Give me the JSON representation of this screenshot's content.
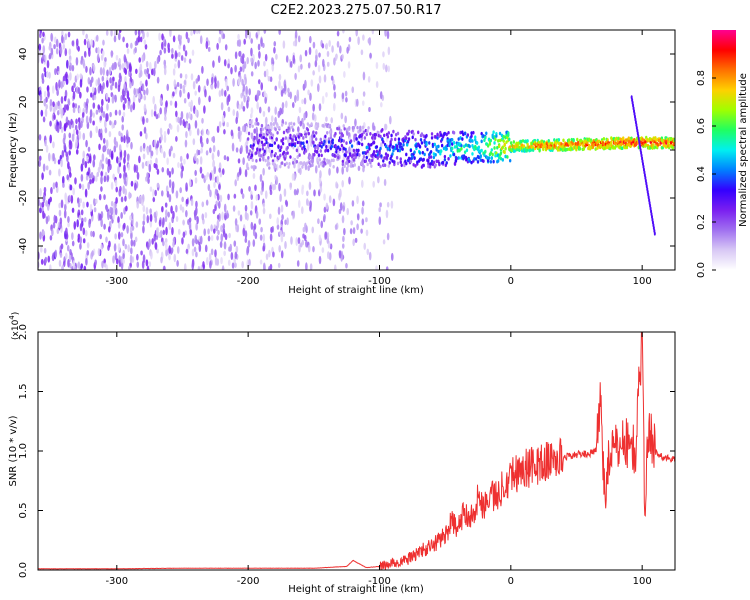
{
  "title": "C2E2.2023.275.07.50.R17",
  "colors": {
    "snr_line": "#ee3030",
    "colormap": [
      "#ffffff",
      "#d8c8f5",
      "#a070f0",
      "#7a1ff0",
      "#3300ff",
      "#0080ff",
      "#00f0f0",
      "#20ff60",
      "#a0ff00",
      "#ffd000",
      "#ff7000",
      "#ff0000",
      "#ff0090"
    ]
  },
  "chart_data": [
    {
      "type": "heatmap",
      "title": "C2E2.2023.275.07.50.R17",
      "xlabel": "Height of straight line (km)",
      "ylabel": "Frequency (Hz)",
      "xlim": [
        -360,
        125
      ],
      "ylim": [
        -50,
        50
      ],
      "x_ticks": [
        -300,
        -200,
        -100,
        0,
        100
      ],
      "x_tick_labels": [
        "-300",
        "-200",
        "-100",
        "0",
        "100"
      ],
      "y_ticks": [
        -40,
        -20,
        0,
        20,
        40
      ],
      "y_tick_labels": [
        "-40",
        "-20",
        "0",
        "20",
        "40"
      ],
      "colorbar": {
        "label": "Normalized spectral amplitude",
        "range": [
          0,
          1
        ],
        "ticks": [
          0.0,
          0.2,
          0.4,
          0.6,
          0.8
        ],
        "tick_labels": [
          "0.0",
          "0.2",
          "0.4",
          "0.6",
          "0.8"
        ]
      },
      "ridge": {
        "description_points": [
          {
            "x": -150,
            "y": 2,
            "amp": 0.3
          },
          {
            "x": -100,
            "y": 1,
            "amp": 0.4
          },
          {
            "x": -60,
            "y": 0,
            "amp": 0.45
          },
          {
            "x": -30,
            "y": 1,
            "amp": 0.55
          },
          {
            "x": 0,
            "y": 1.5,
            "amp": 0.75
          },
          {
            "x": 30,
            "y": 2,
            "amp": 0.85
          },
          {
            "x": 60,
            "y": 2.5,
            "amp": 0.85
          },
          {
            "x": 90,
            "y": 3,
            "amp": 0.9
          },
          {
            "x": 125,
            "y": 3,
            "amp": 0.85
          }
        ],
        "spike": {
          "x": [
            92,
            110
          ],
          "y": [
            22,
            -36
          ]
        }
      },
      "grid": false
    },
    {
      "type": "line",
      "xlabel": "Height of straight line (km)",
      "ylabel": "SNR (10 * v/v)",
      "scale_label": "(x10",
      "scale_exp": "4",
      "scale_close": ")",
      "xlim": [
        -360,
        125
      ],
      "ylim": [
        0,
        2.0
      ],
      "x_ticks": [
        -300,
        -200,
        -100,
        0,
        100
      ],
      "x_tick_labels": [
        "-300",
        "-200",
        "-100",
        "0",
        "100"
      ],
      "y_ticks": [
        0.0,
        0.5,
        1.0,
        1.5,
        2.0
      ],
      "y_tick_labels": [
        "0.0",
        "0.5",
        "1.0",
        "1.5",
        "2.0"
      ],
      "series": [
        {
          "x": [
            -360,
            -300,
            -250,
            -200,
            -150,
            -125,
            -120,
            -110,
            -100,
            -80,
            -70,
            -60,
            -50,
            -45,
            -40,
            -35,
            -30,
            -25,
            -20,
            -15,
            -10,
            -5,
            0,
            10,
            20,
            30,
            40,
            50,
            60,
            65,
            68,
            70,
            72,
            75,
            80,
            85,
            90,
            95,
            98,
            100,
            102,
            105,
            110,
            115,
            125
          ],
          "y": [
            0.01,
            0.01,
            0.015,
            0.015,
            0.015,
            0.03,
            0.08,
            0.02,
            0.03,
            0.08,
            0.15,
            0.2,
            0.3,
            0.4,
            0.35,
            0.5,
            0.45,
            0.6,
            0.55,
            0.65,
            0.6,
            0.75,
            0.8,
            0.85,
            0.88,
            0.92,
            0.95,
            0.97,
            0.98,
            1.0,
            1.45,
            1.0,
            0.6,
            1.0,
            1.0,
            1.1,
            1.05,
            1.0,
            1.6,
            2.0,
            0.5,
            1.2,
            1.0,
            0.95,
            0.93
          ]
        }
      ],
      "grid": false
    }
  ]
}
